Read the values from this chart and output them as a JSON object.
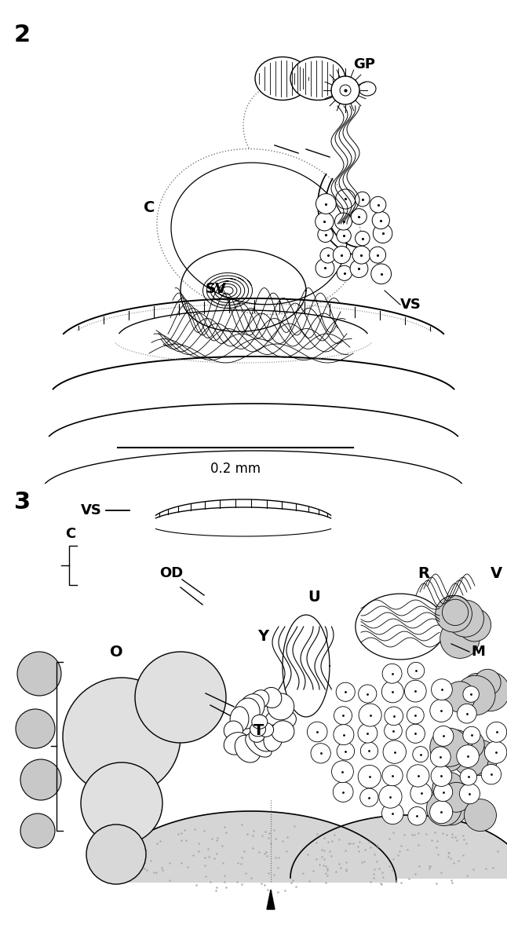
{
  "fig_width": 6.46,
  "fig_height": 11.78,
  "bg_color": "#ffffff",
  "label_2": "2",
  "label_3": "3",
  "scale_bar_text": "0.2 mm"
}
